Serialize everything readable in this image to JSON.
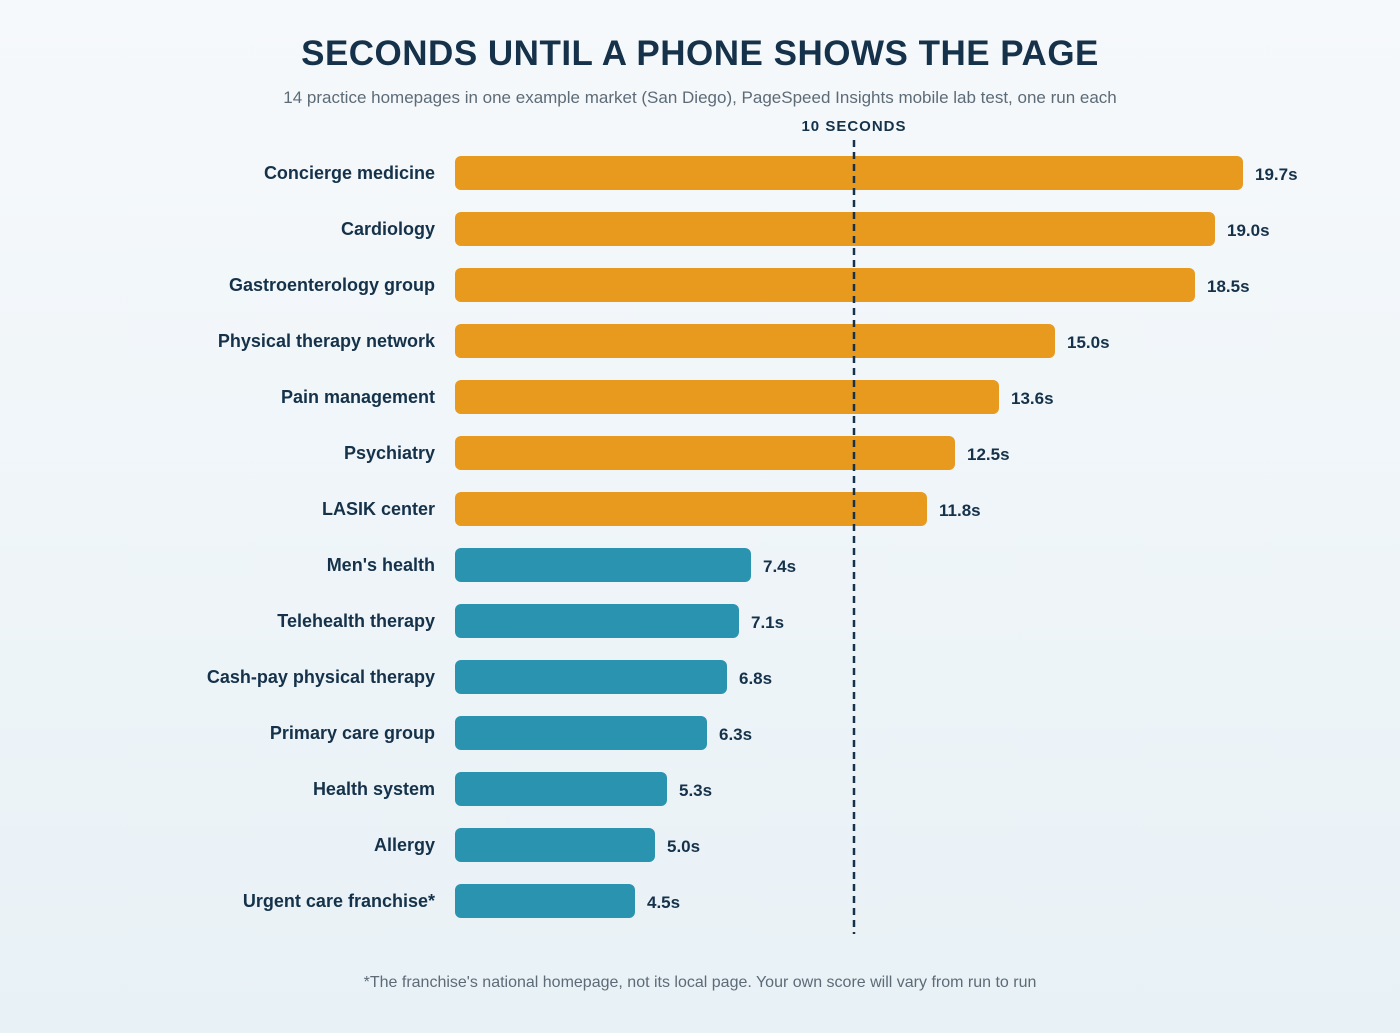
{
  "chart_data": {
    "type": "bar",
    "orientation": "horizontal",
    "title": "SECONDS UNTIL A PHONE SHOWS THE PAGE",
    "subtitle": "14 practice homepages in one example market (San Diego), PageSpeed Insights mobile lab test, one run each",
    "categories": [
      "Concierge medicine",
      "Cardiology",
      "Gastroenterology group",
      "Physical therapy network",
      "Pain management",
      "Psychiatry",
      "LASIK center",
      "Men's health",
      "Telehealth therapy",
      "Cash-pay physical therapy",
      "Primary care group",
      "Health system",
      "Allergy",
      "Urgent care franchise*"
    ],
    "values": [
      19.7,
      19.0,
      18.5,
      15.0,
      13.6,
      12.5,
      11.8,
      7.4,
      7.1,
      6.8,
      6.3,
      5.3,
      5.0,
      4.5
    ],
    "value_labels": [
      "19.7s",
      "19.0s",
      "18.5s",
      "15.0s",
      "13.6s",
      "12.5s",
      "11.8s",
      "7.4s",
      "7.1s",
      "6.8s",
      "6.3s",
      "5.3s",
      "5.0s",
      "4.5s"
    ],
    "xlim": [
      0,
      20
    ],
    "reference_line": {
      "value": 10,
      "label": "10 SECONDS"
    },
    "colors": {
      "above_reference": "#e89a1f",
      "below_reference": "#2a94b0",
      "reference_line": "#15324a"
    },
    "grid": false,
    "legend": "none",
    "footnote": "*The franchise's national homepage, not its local page. Your own score will vary from run to run"
  }
}
